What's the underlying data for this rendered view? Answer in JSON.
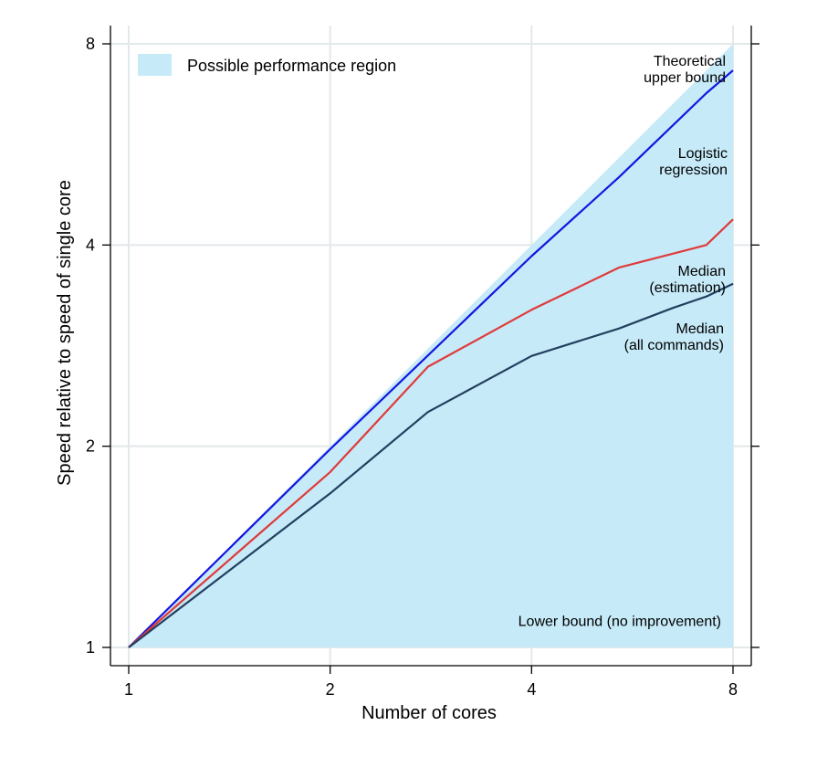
{
  "chart_data": {
    "type": "line",
    "xlabel": "Number of cores",
    "ylabel": "Speed relative to speed of single core",
    "x_scale": "log2",
    "y_scale": "log2",
    "xlim": [
      1,
      8
    ],
    "ylim": [
      1,
      8
    ],
    "x_ticks": [
      1,
      2,
      4,
      8
    ],
    "x_tick_labels": [
      "1",
      "2",
      "4",
      "8"
    ],
    "y_ticks": [
      1,
      2,
      4,
      8
    ],
    "y_tick_labels": [
      "1",
      "2",
      "4",
      "8"
    ],
    "grid": true,
    "region": {
      "label": "Possible performance region",
      "color": "#c6eaf8",
      "lower": [
        [
          1,
          1
        ],
        [
          8,
          1
        ]
      ],
      "upper": [
        [
          1,
          1
        ],
        [
          8,
          8
        ]
      ]
    },
    "legend_position": "top-left",
    "series": [
      {
        "color": "#1515e0",
        "points": [
          [
            1,
            1
          ],
          [
            2,
            1.98
          ],
          [
            4,
            3.85
          ],
          [
            5.4,
            5.05
          ],
          [
            7.3,
            6.75
          ],
          [
            8,
            7.3
          ]
        ]
      },
      {
        "color": "#e03a3a",
        "points": [
          [
            1,
            1
          ],
          [
            2,
            1.83
          ],
          [
            2.8,
            2.63
          ],
          [
            4,
            3.2
          ],
          [
            5.4,
            3.7
          ],
          [
            7.3,
            4
          ],
          [
            8,
            4.37
          ]
        ]
      },
      {
        "color": "#233f5e",
        "points": [
          [
            1,
            1
          ],
          [
            2,
            1.7
          ],
          [
            2.8,
            2.25
          ],
          [
            4,
            2.73
          ],
          [
            5.4,
            3.0
          ],
          [
            6.5,
            3.22
          ],
          [
            7.3,
            3.35
          ],
          [
            8,
            3.5
          ]
        ]
      }
    ],
    "annotations": [
      {
        "id": "upper",
        "lines": [
          "Theoretical",
          "upper bound"
        ],
        "x": 8,
        "y": 8,
        "align": "right"
      },
      {
        "id": "logistic",
        "lines": [
          "Logistic",
          "regression"
        ],
        "x": 8,
        "y": 5.4,
        "align": "right"
      },
      {
        "id": "median_est",
        "lines": [
          "Median",
          "(estimation)"
        ],
        "x": 8,
        "y": 3.6,
        "align": "right"
      },
      {
        "id": "median_all",
        "lines": [
          "Median",
          "(all commands)"
        ],
        "x": 8,
        "y": 2.95,
        "align": "right"
      },
      {
        "id": "lower",
        "lines": [
          "Lower bound (no improvement)"
        ],
        "x": 8,
        "y": 1.05,
        "align": "right"
      }
    ]
  }
}
